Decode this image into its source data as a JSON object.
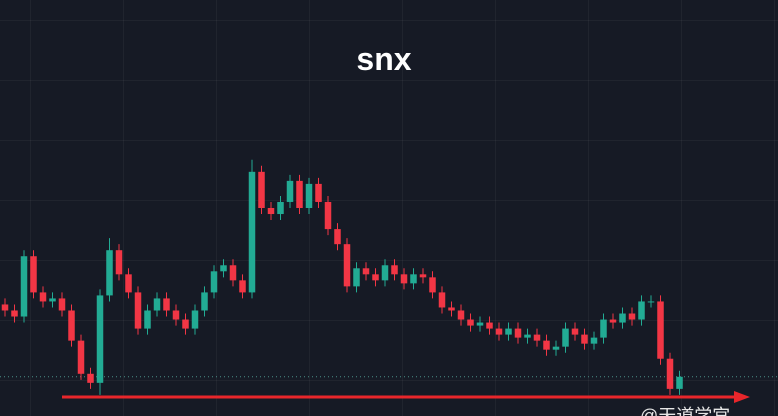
{
  "chart_data": {
    "type": "candlestick",
    "title": "snx",
    "watermark": "@天道学宫",
    "up_color": "#22ab94",
    "down_color": "#f23645",
    "ylim": [
      -5,
      133
    ],
    "open": [
      32,
      30,
      28,
      48,
      36,
      33,
      34,
      30,
      20,
      9,
      6,
      35,
      50,
      42,
      36,
      24,
      30,
      34,
      30,
      27,
      24,
      30,
      36,
      43,
      45,
      40,
      36,
      76,
      64,
      62,
      66,
      73,
      64,
      72,
      66,
      57,
      52,
      38,
      44,
      42,
      40,
      45,
      42,
      39,
      42,
      41,
      36,
      31,
      30,
      27,
      25,
      26,
      24,
      22,
      24,
      21,
      22,
      20,
      17,
      18,
      24,
      22,
      19,
      21,
      27,
      26,
      29,
      27,
      33,
      33,
      14,
      4
    ],
    "high": [
      34,
      32,
      50,
      50,
      38,
      36,
      36,
      32,
      22,
      11,
      37,
      54,
      52,
      44,
      38,
      32,
      36,
      36,
      32,
      29,
      32,
      38,
      45,
      47,
      47,
      42,
      80,
      78,
      66,
      68,
      75,
      75,
      74,
      74,
      68,
      59,
      54,
      46,
      46,
      44,
      47,
      47,
      44,
      44,
      44,
      43,
      38,
      33,
      32,
      29,
      28,
      28,
      26,
      26,
      26,
      24,
      24,
      22,
      20,
      26,
      26,
      24,
      23,
      29,
      29,
      31,
      31,
      35,
      35,
      35,
      16,
      10
    ],
    "low": [
      28,
      26,
      26,
      34,
      31,
      31,
      28,
      18,
      7,
      4,
      2,
      33,
      40,
      34,
      22,
      22,
      28,
      28,
      25,
      22,
      22,
      28,
      34,
      41,
      38,
      34,
      34,
      62,
      60,
      60,
      64,
      62,
      62,
      64,
      55,
      50,
      36,
      36,
      40,
      38,
      38,
      40,
      37,
      37,
      39,
      34,
      29,
      28,
      25,
      23,
      23,
      22,
      20,
      20,
      19,
      19,
      18,
      15,
      15,
      16,
      20,
      17,
      17,
      19,
      24,
      24,
      25,
      25,
      31,
      12,
      2,
      2
    ],
    "close": [
      30,
      28,
      48,
      36,
      33,
      34,
      30,
      20,
      9,
      6,
      35,
      50,
      42,
      36,
      24,
      30,
      34,
      30,
      27,
      24,
      30,
      36,
      43,
      45,
      40,
      36,
      76,
      64,
      62,
      66,
      73,
      64,
      72,
      66,
      57,
      52,
      38,
      44,
      42,
      40,
      45,
      42,
      39,
      42,
      41,
      36,
      31,
      30,
      27,
      25,
      26,
      24,
      22,
      24,
      21,
      22,
      20,
      17,
      18,
      24,
      22,
      19,
      21,
      27,
      26,
      29,
      27,
      33,
      33,
      14,
      4,
      8
    ]
  }
}
